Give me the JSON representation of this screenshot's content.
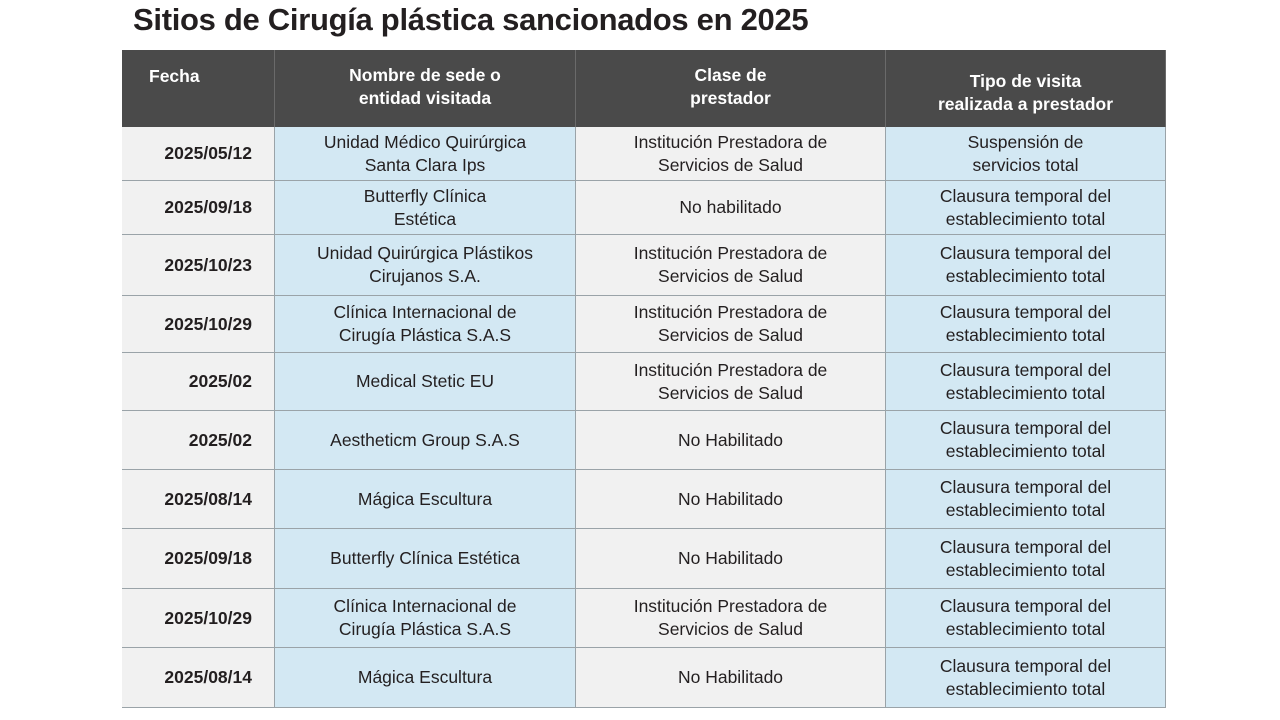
{
  "title": "Sitios de Cirugía plástica sancionados en 2025",
  "table": {
    "header": [
      [
        "Fecha"
      ],
      [
        "Nombre de sede o",
        "entidad visitada"
      ],
      [
        "Clase de",
        "prestador"
      ],
      [
        "Tipo de visita",
        "realizada a prestador"
      ]
    ],
    "rows": [
      [
        [
          "2025/05/12"
        ],
        [
          "Unidad Médico Quirúrgica",
          "Santa Clara Ips"
        ],
        [
          "Institución Prestadora de",
          "Servicios de Salud"
        ],
        [
          "Suspensión de",
          "servicios total"
        ]
      ],
      [
        [
          "2025/09/18"
        ],
        [
          "Butterfly Clínica",
          "Estética"
        ],
        [
          "No habilitado"
        ],
        [
          "Clausura temporal del",
          "establecimiento total"
        ]
      ],
      [
        [
          "2025/10/23"
        ],
        [
          "Unidad Quirúrgica Plástikos",
          "Cirujanos S.A."
        ],
        [
          "Institución Prestadora de",
          "Servicios de Salud"
        ],
        [
          "Clausura temporal del",
          "establecimiento total"
        ]
      ],
      [
        [
          "2025/10/29"
        ],
        [
          "Clínica Internacional de",
          "Cirugía Plástica  S.A.S"
        ],
        [
          "Institución Prestadora de",
          "Servicios de Salud"
        ],
        [
          "Clausura temporal del",
          "establecimiento total"
        ]
      ],
      [
        [
          "2025/02"
        ],
        [
          "Medical Stetic EU"
        ],
        [
          "Institución Prestadora de",
          "Servicios de Salud"
        ],
        [
          "Clausura temporal del",
          "establecimiento total"
        ]
      ],
      [
        [
          "2025/02"
        ],
        [
          "Aestheticm Group S.A.S"
        ],
        [
          "No Habilitado"
        ],
        [
          "Clausura temporal del",
          "establecimiento total"
        ]
      ],
      [
        [
          "2025/08/14"
        ],
        [
          "Mágica Escultura"
        ],
        [
          "No Habilitado"
        ],
        [
          "Clausura temporal del",
          "establecimiento total"
        ]
      ],
      [
        [
          "2025/09/18"
        ],
        [
          "Butterfly Clínica Estética"
        ],
        [
          "No Habilitado"
        ],
        [
          "Clausura temporal del",
          "establecimiento total"
        ]
      ],
      [
        [
          "2025/10/29"
        ],
        [
          "Clínica Internacional de",
          "Cirugía Plástica S.A.S"
        ],
        [
          "Institución Prestadora de",
          "Servicios de Salud"
        ],
        [
          "Clausura temporal del",
          "establecimiento total"
        ]
      ],
      [
        [
          "2025/08/14"
        ],
        [
          "Mágica Escultura"
        ],
        [
          "No Habilitado"
        ],
        [
          "Clausura temporal del",
          "establecimiento total"
        ]
      ]
    ]
  }
}
